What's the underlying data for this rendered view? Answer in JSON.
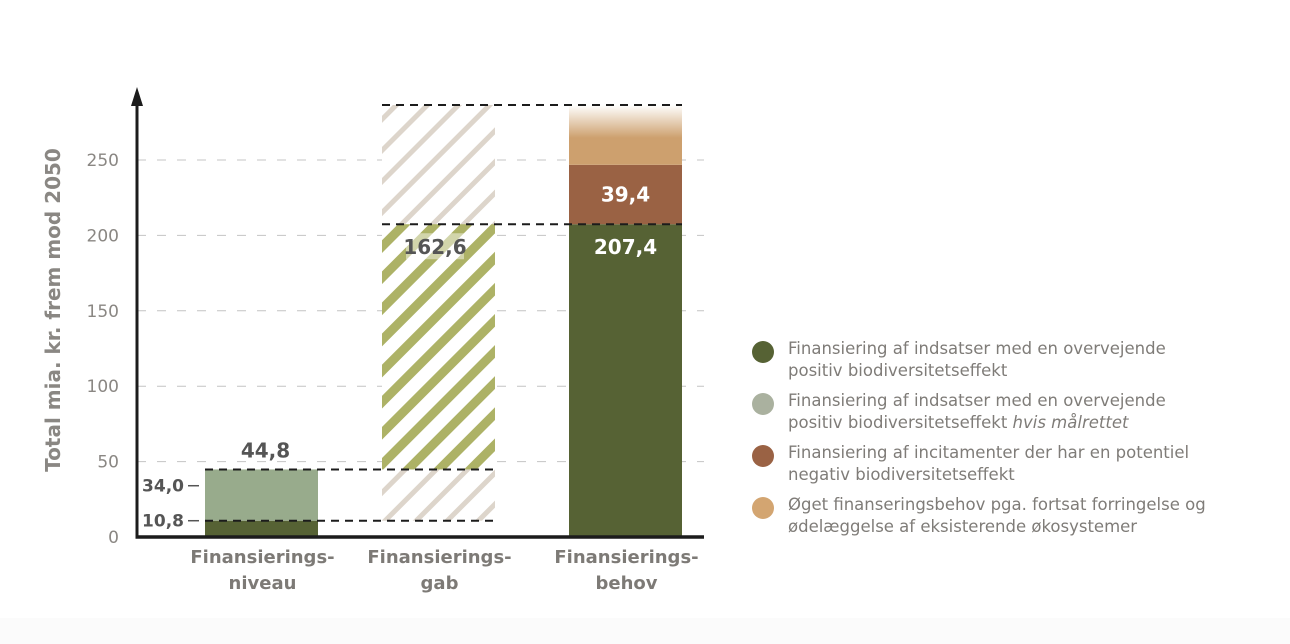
{
  "chart_data": {
    "type": "bar",
    "title": "",
    "xlabel": "",
    "ylabel": "Total mia. kr. frem mod 2050",
    "ylim": [
      0,
      280
    ],
    "yticks": [
      0,
      50,
      100,
      150,
      200,
      250
    ],
    "ytick_labels": [
      "0",
      "50",
      "100",
      "150",
      "200",
      "250"
    ],
    "grid": "horizontal dashed",
    "legend_position": "right",
    "categories": [
      {
        "line1": "Finansierings-",
        "line2": "niveau"
      },
      {
        "line1": "Finansierings-",
        "line2": "gab"
      },
      {
        "line1": "Finansierings-",
        "line2": "behov"
      }
    ],
    "bars": [
      {
        "category": "Finansieringsniveau",
        "segments": [
          {
            "series": "positiv",
            "from": 0,
            "to": 10.8,
            "color": "#566234"
          },
          {
            "series": "hvis_maalrettet",
            "from": 10.8,
            "to": 44.8,
            "color": "#98ab8c"
          }
        ],
        "total_label": "44,8",
        "side_labels": [
          {
            "value": 10.8,
            "text": "10,8"
          },
          {
            "value": 34.0,
            "text": "34,0"
          }
        ]
      },
      {
        "category": "Finansieringsgab",
        "segments": [
          {
            "series": "gap_beige",
            "from": 10.8,
            "to": 286.5,
            "pattern": "hatch",
            "color": "#ddd5cb"
          },
          {
            "series": "gap_green",
            "from": 44.8,
            "to": 207.4,
            "pattern": "hatch",
            "color": "#adb266"
          }
        ],
        "value_label": "162,6",
        "value": 162.6
      },
      {
        "category": "Finansieringsbehov",
        "segments": [
          {
            "series": "positiv",
            "from": 0,
            "to": 207.4,
            "color": "#566234",
            "label": "207,4"
          },
          {
            "series": "negativ",
            "from": 207.4,
            "to": 246.8,
            "color": "#9a6244",
            "label": "39,4"
          },
          {
            "series": "oeget",
            "from": 246.8,
            "to": 286.5,
            "color": "#cda06e",
            "fade": true
          }
        ]
      }
    ],
    "reference_lines": [
      {
        "value": 10.8,
        "from_bar": 0,
        "to_bar": 1
      },
      {
        "value": 44.8,
        "from_bar": 0,
        "to_bar": 1
      },
      {
        "value": 207.4,
        "from_bar": 1,
        "to_bar": 2
      },
      {
        "value": 286.5,
        "from_bar": 1,
        "to_bar": 2
      }
    ],
    "legend": [
      {
        "color": "#566234",
        "text": "Finansiering af indsatser med en overvejende positiv biodiversitetseffekt",
        "italic": ""
      },
      {
        "color": "#aab19f",
        "text": "Finansiering af indsatser med en overvejende positiv biodiversitetseffekt ",
        "italic": "hvis målrettet"
      },
      {
        "color": "#9a6244",
        "text": "Finansiering af incitamenter der har en potentiel negativ biodiversitetseffekt",
        "italic": ""
      },
      {
        "color": "#d3a571",
        "text": "Øget finanseringsbehov pga. fortsat forringelse og ødelæggelse af eksisterende økosystemer",
        "italic": ""
      }
    ]
  }
}
